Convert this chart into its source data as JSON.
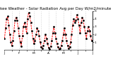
{
  "title": "Milwaukee Weather - Solar Radiation Avg per Day W/m2/minute",
  "line_color": "#ff0000",
  "marker_color": "#000000",
  "bg_color": "#ffffff",
  "grid_color": "#b0b0b0",
  "ylim": [
    0,
    5.0
  ],
  "yticks": [
    1,
    2,
    3,
    4,
    5
  ],
  "values": [
    1.5,
    2.8,
    4.0,
    4.3,
    3.2,
    2.0,
    1.0,
    0.6,
    1.2,
    2.5,
    3.8,
    4.2,
    3.8,
    2.8,
    1.8,
    1.0,
    0.5,
    1.8,
    3.0,
    3.5,
    3.0,
    2.2,
    4.0,
    4.8,
    4.3,
    3.5,
    2.5,
    1.5,
    0.8,
    1.2,
    2.0,
    2.8,
    2.5,
    1.8,
    1.0,
    0.4,
    0.2,
    0.6,
    1.2,
    2.0,
    1.5,
    0.8,
    0.3,
    0.1,
    0.5,
    1.2,
    2.2,
    3.0,
    2.2,
    1.5,
    0.8,
    0.4,
    0.1,
    0.2,
    0.6,
    1.2,
    2.0,
    2.8,
    2.0,
    1.2,
    0.6,
    0.2,
    0.4,
    1.0,
    2.0,
    3.2,
    4.0,
    3.5,
    3.8,
    4.5,
    4.0,
    3.2,
    2.2,
    3.5,
    4.2,
    3.8,
    3.0,
    2.2,
    1.5,
    2.5,
    3.0,
    2.5,
    1.8,
    1.2
  ],
  "grid_x_positions": [
    7,
    14,
    21,
    28,
    35,
    42,
    49,
    56,
    63,
    70,
    77
  ],
  "xtick_positions": [
    0,
    7,
    14,
    21,
    28,
    35,
    42,
    49,
    56,
    63,
    70,
    77,
    84
  ],
  "xtick_labels": [
    "J",
    "",
    "F",
    "",
    "M",
    "",
    "A",
    "",
    "M",
    "",
    "J",
    "",
    "J"
  ],
  "title_fontsize": 4.0,
  "tick_fontsize": 3.2
}
